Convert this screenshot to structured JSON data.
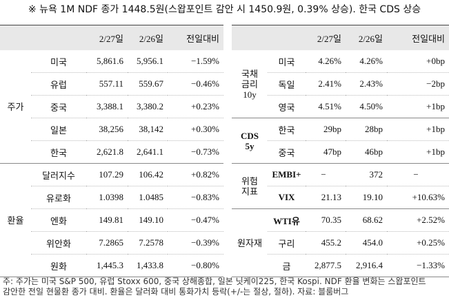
{
  "title": "※ 뉴욕 1M NDF 종가 1448.5원(스왑포인트 감안 시 1450.9원, 0.39% 상승). 한국 CDS 상승",
  "left": {
    "headers": [
      "2/27일",
      "2/26일",
      "전일대비"
    ],
    "groups": [
      {
        "label": [
          "주가"
        ],
        "rows": [
          [
            "미국",
            "5,861.6",
            "5,956.1",
            "−1.59%"
          ],
          [
            "유럽",
            "557.11",
            "559.67",
            "−0.46%"
          ],
          [
            "중국",
            "3,388.1",
            "3,380.2",
            "+0.23%"
          ],
          [
            "일본",
            "38,256",
            "38,142",
            "+0.30%"
          ],
          [
            "한국",
            "2,621.8",
            "2,641.1",
            "−0.73%"
          ]
        ]
      },
      {
        "label": [
          "환율"
        ],
        "rows": [
          [
            "달러지수",
            "107.29",
            "106.42",
            "+0.82%"
          ],
          [
            "유로화",
            "1.0398",
            "1.0485",
            "−0.83%"
          ],
          [
            "엔화",
            "149.81",
            "149.10",
            "−0.47%"
          ],
          [
            "위안화",
            "7.2865",
            "7.2578",
            "−0.39%"
          ],
          [
            "원화",
            "1,445.3",
            "1,433.8",
            "−0.80%"
          ]
        ]
      }
    ]
  },
  "right": {
    "headers": [
      "2/27일",
      "2/26일",
      "전일대비"
    ],
    "groups": [
      {
        "label": [
          "국채",
          "금리",
          "10y"
        ],
        "rows": [
          [
            "미국",
            "4.26%",
            "4.26%",
            "+0bp"
          ],
          [
            "독일",
            "2.41%",
            "2.43%",
            "−2bp"
          ],
          [
            "영국",
            "4.51%",
            "4.50%",
            "+1bp"
          ]
        ]
      },
      {
        "label": [
          "CDS",
          "5y"
        ],
        "bold": true,
        "rows": [
          [
            "한국",
            "29bp",
            "28bp",
            "+1bp"
          ],
          [
            "중국",
            "47bp",
            "46bp",
            "+1bp"
          ]
        ]
      },
      {
        "label": [
          "위험",
          "지표"
        ],
        "rows": [
          [
            "EMBI+",
            "−",
            "372",
            "−"
          ],
          [
            "VIX",
            "21.13",
            "19.10",
            "+10.63%"
          ]
        ]
      },
      {
        "label": [
          "원자재"
        ],
        "rows": [
          [
            "WTI유",
            "70.35",
            "68.62",
            "+2.52%"
          ],
          [
            "구리",
            "455.2",
            "454.0",
            "+0.25%"
          ],
          [
            "금",
            "2,877.5",
            "2,916.4",
            "−1.33%"
          ]
        ]
      }
    ]
  },
  "footnote": [
    "주: 주가는 미국 S&P 500, 유럽 Stoxx 600, 중국 상해종합, 일본 닛케이225, 한국 Kospi. NDF 환율 변화는 스왑포인트",
    "감안한 전일 현물환 종가 대비. 환율은 달러화 대비 통화가치 등락(+/-는 절상, 절하). 자료: 블룸버그"
  ]
}
